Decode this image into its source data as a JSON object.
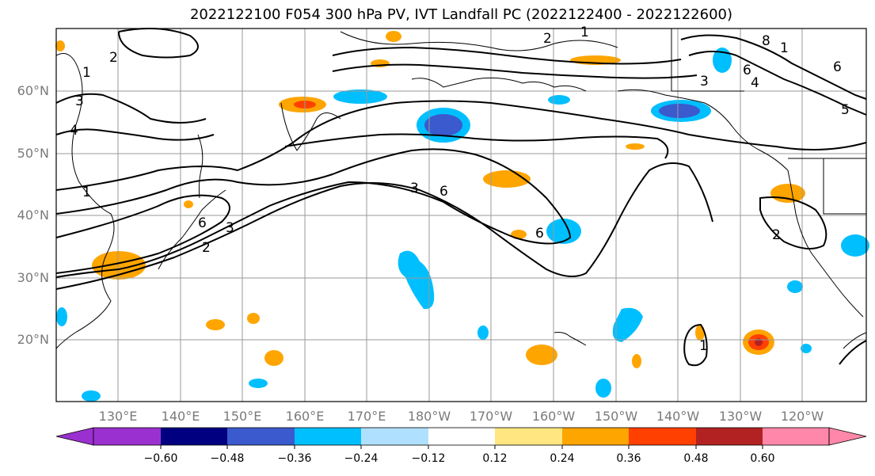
{
  "title": "2022122100 F054 300 hPa PV, IVT Landfall PC (2022122400 - 2022122600)",
  "lat_labels": [
    "60°N",
    "50°N",
    "40°N",
    "30°N",
    "20°N"
  ],
  "lon_labels": [
    "130°E",
    "140°E",
    "150°E",
    "160°E",
    "170°E",
    "180°W",
    "170°W",
    "160°W",
    "150°W",
    "140°W",
    "130°W",
    "120°W"
  ],
  "colorbar": {
    "ticks": [
      "−0.60",
      "−0.48",
      "−0.36",
      "−0.24",
      "−0.12",
      "0.12",
      "0.24",
      "0.36",
      "0.48",
      "0.60"
    ],
    "colors": [
      "#9b30d0",
      "#000080",
      "#3a5acd",
      "#00bfff",
      "#b0e0ff",
      "#ffffff",
      "#ffe680",
      "#ffa500",
      "#ff4000",
      "#b22222",
      "#ff88aa"
    ]
  },
  "contour_labels": [
    "1",
    "2",
    "3",
    "4",
    "5",
    "6",
    "8"
  ],
  "colors": {
    "gridline": "#9a9a9a",
    "contour": "#000000",
    "coast": "#000000",
    "axis_text": "#7a7a7a"
  }
}
